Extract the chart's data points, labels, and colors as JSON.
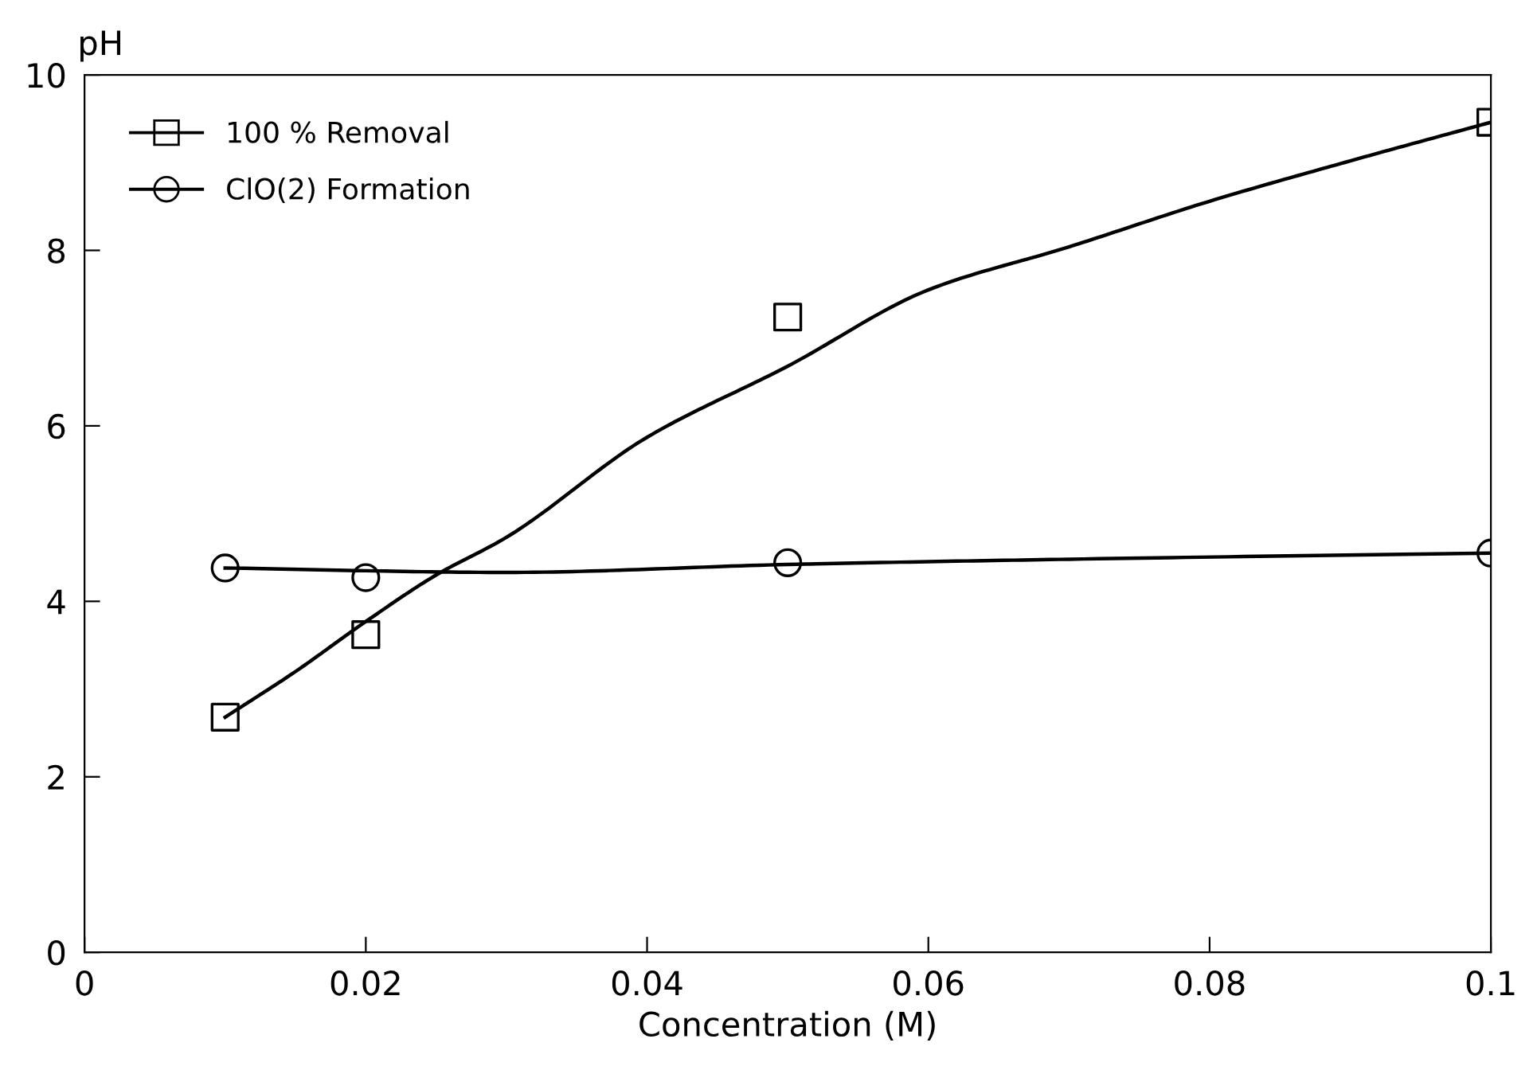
{
  "chart_data": {
    "type": "scatter",
    "xlabel": "Concentration (M)",
    "ylabel": "pH",
    "xlim": [
      0,
      0.1
    ],
    "ylim": [
      0,
      10
    ],
    "xticks": [
      0,
      0.02,
      0.04,
      0.06,
      0.08,
      {
        "value": 0.1,
        "label": "0.1"
      }
    ],
    "yticks": [
      0,
      2,
      4,
      6,
      8,
      10
    ],
    "grid": false,
    "legend": "top left",
    "series": [
      {
        "name": "100 % Removal",
        "marker": "square",
        "color": "#000000",
        "x": [
          0.01,
          0.02,
          0.05,
          0.1
        ],
        "values": [
          2.68,
          3.62,
          7.24,
          9.46
        ]
      },
      {
        "name": "ClO(2) Formation",
        "marker": "circle",
        "color": "#000000",
        "x": [
          0.01,
          0.02,
          0.05,
          0.1
        ],
        "values": [
          4.38,
          4.27,
          4.44,
          4.55
        ]
      },
      {
        "type": "line",
        "marker": "none",
        "color": "#000000",
        "x": [
          0.01,
          0.015,
          0.02,
          0.025,
          0.03,
          0.04,
          0.05,
          0.06,
          0.07,
          0.08,
          0.09,
          0.1
        ],
        "values": [
          2.68,
          3.2,
          3.77,
          4.3,
          4.73,
          5.87,
          6.68,
          7.55,
          8.04,
          8.56,
          9.02,
          9.46
        ]
      },
      {
        "type": "line",
        "marker": "none",
        "color": "#000000",
        "x": [
          0.01,
          0.03,
          0.05,
          0.07,
          0.1
        ],
        "values": [
          4.38,
          4.33,
          4.42,
          4.48,
          4.55
        ]
      }
    ]
  }
}
